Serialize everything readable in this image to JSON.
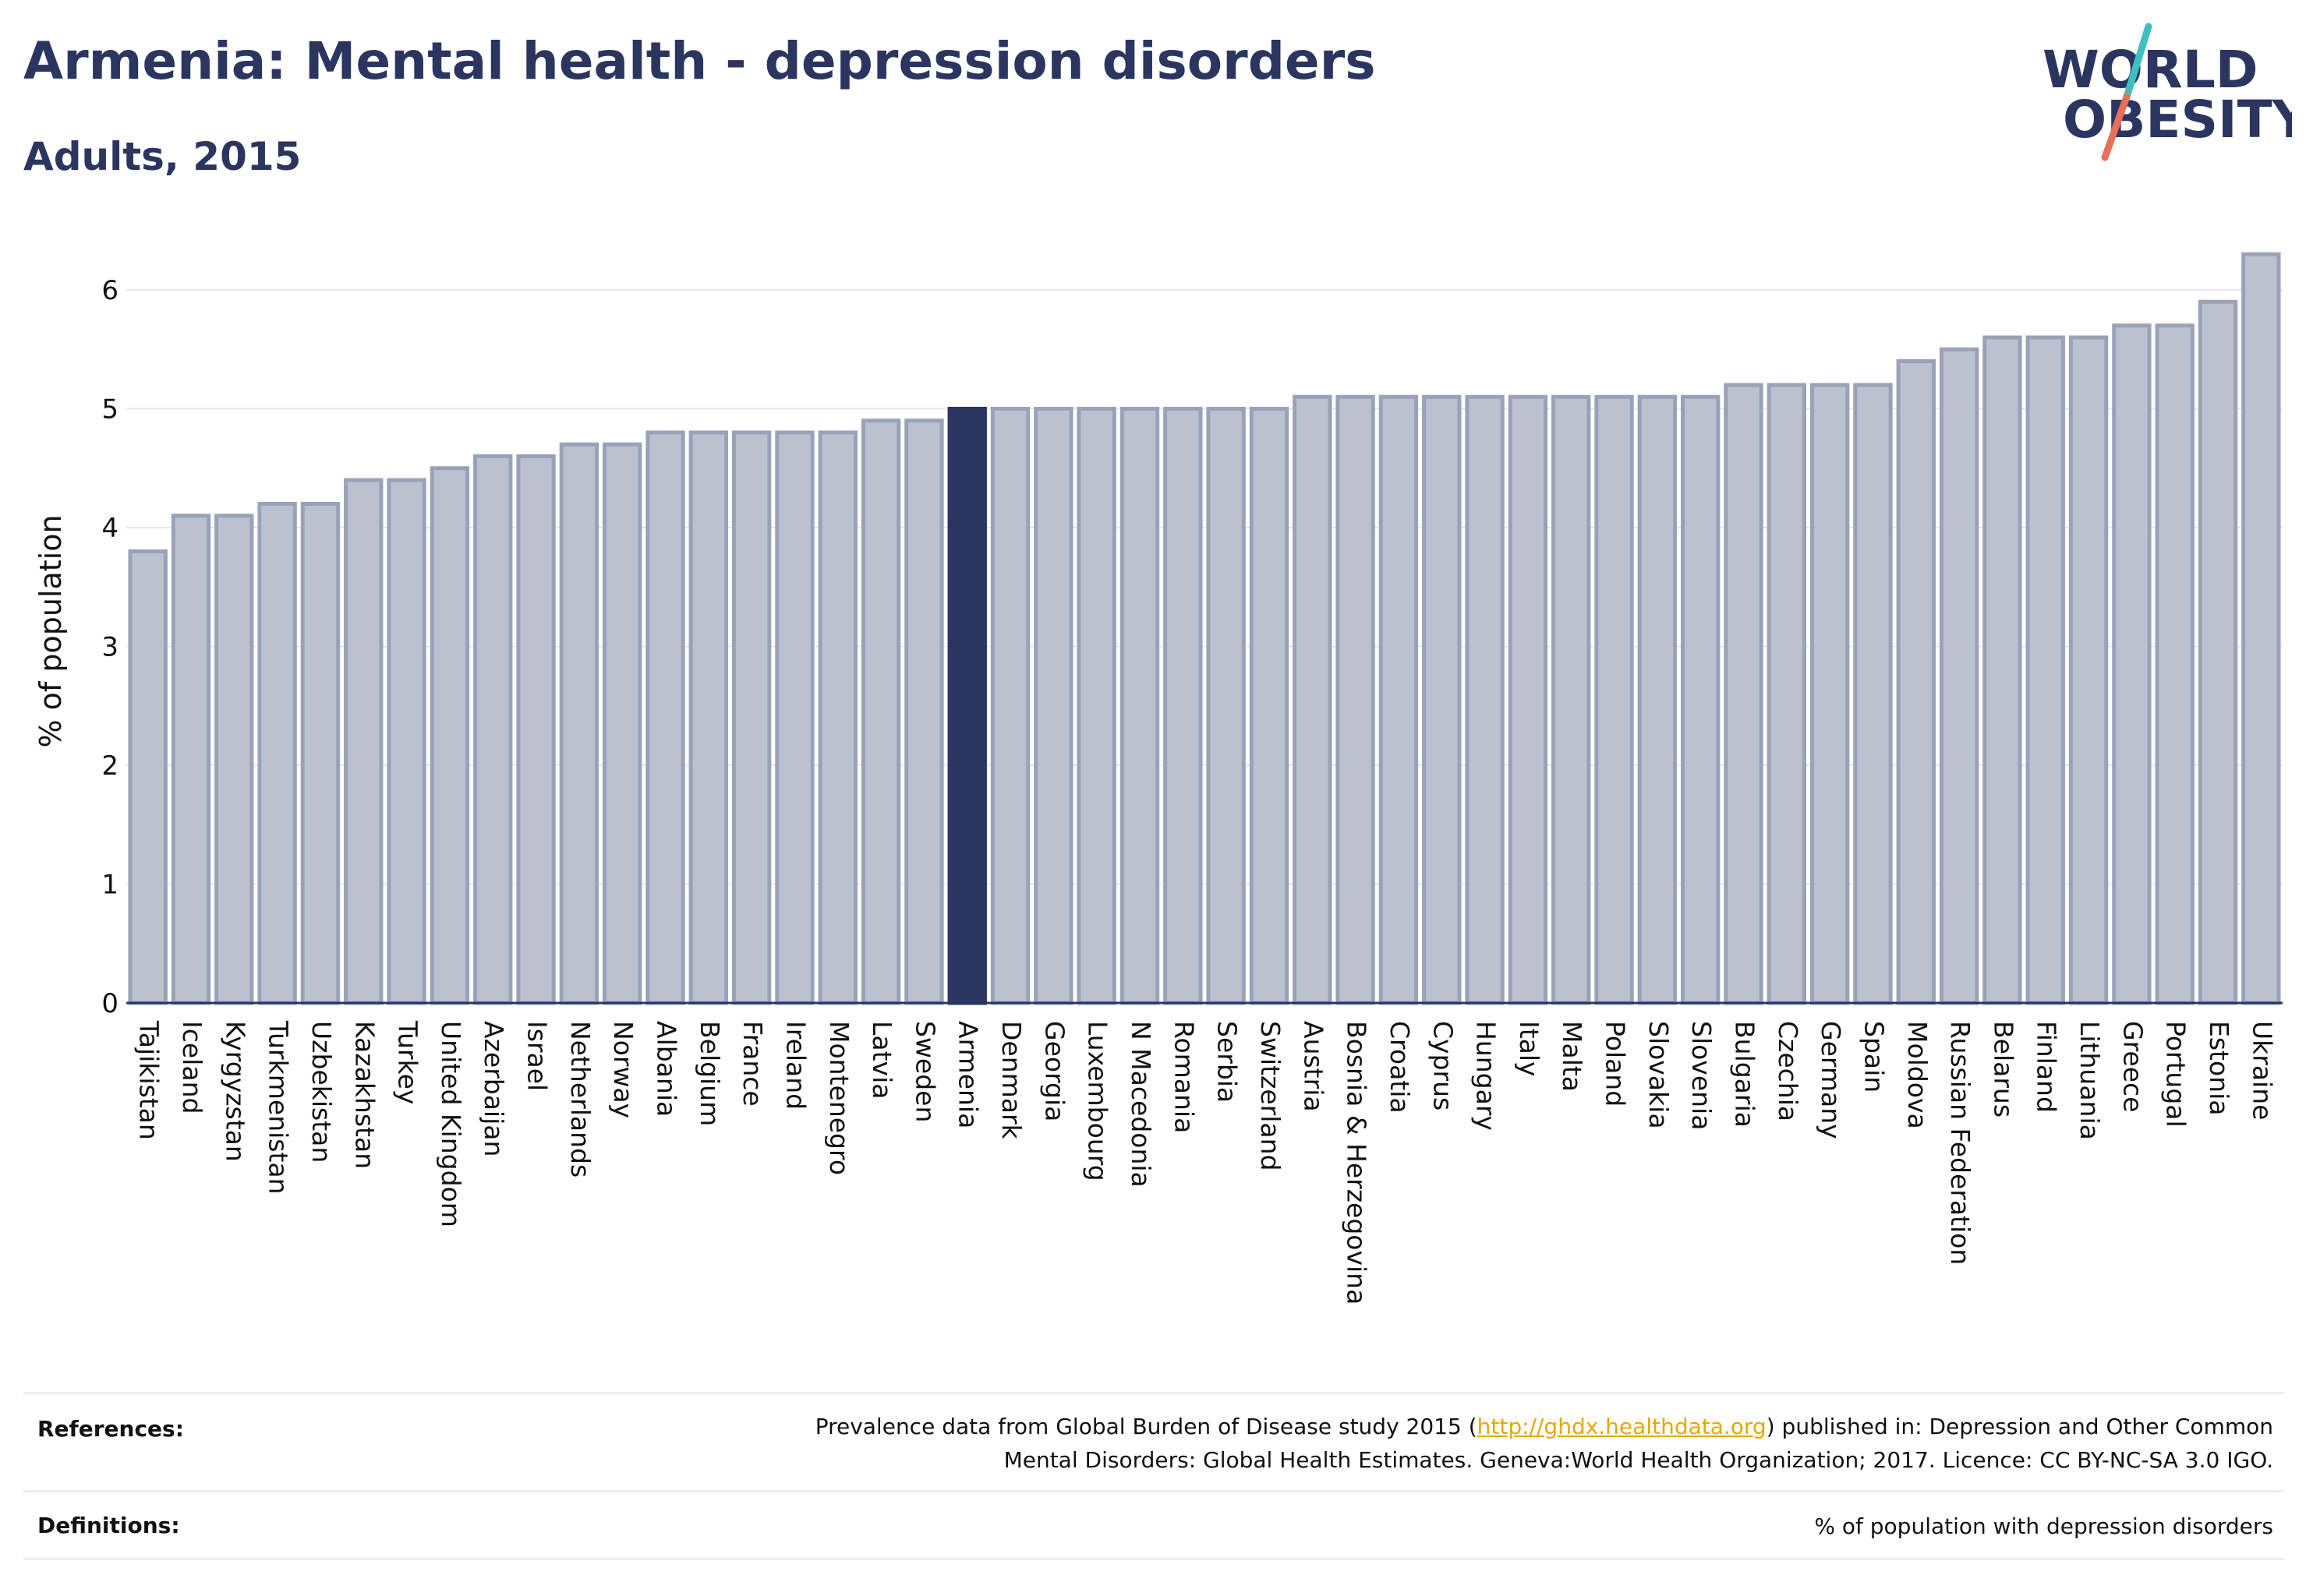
{
  "title": "Armenia: Mental health - depression disorders",
  "subtitle": "Adults, 2015",
  "logo": {
    "line1": "WORLD",
    "line2": "OBESITY"
  },
  "colors": {
    "bar": "#bcc1d0",
    "bar_border": "#9aa2ba",
    "highlight": "#2a3560",
    "title": "#2a3560",
    "link": "#e8a800",
    "slash_teal": "#3fbfbf",
    "slash_coral": "#e8705a"
  },
  "chart_data": {
    "type": "bar",
    "ylabel": "% of population",
    "xlabel": "",
    "ylim": [
      0,
      6.5
    ],
    "yticks": [
      0,
      1,
      2,
      3,
      4,
      5,
      6
    ],
    "grid": true,
    "highlight": "Armenia",
    "categories": [
      "Tajikistan",
      "Iceland",
      "Kyrgyzstan",
      "Turkmenistan",
      "Uzbekistan",
      "Kazakhstan",
      "Turkey",
      "United Kingdom",
      "Azerbaijan",
      "Israel",
      "Netherlands",
      "Norway",
      "Albania",
      "Belgium",
      "France",
      "Ireland",
      "Montenegro",
      "Latvia",
      "Sweden",
      "Armenia",
      "Denmark",
      "Georgia",
      "Luxembourg",
      "N Macedonia",
      "Romania",
      "Serbia",
      "Switzerland",
      "Austria",
      "Bosnia & Herzegovina",
      "Croatia",
      "Cyprus",
      "Hungary",
      "Italy",
      "Malta",
      "Poland",
      "Slovakia",
      "Slovenia",
      "Bulgaria",
      "Czechia",
      "Germany",
      "Spain",
      "Moldova",
      "Russian Federation",
      "Belarus",
      "Finland",
      "Lithuania",
      "Greece",
      "Portugal",
      "Estonia",
      "Ukraine"
    ],
    "values": [
      3.8,
      4.1,
      4.1,
      4.2,
      4.2,
      4.4,
      4.4,
      4.5,
      4.6,
      4.6,
      4.7,
      4.7,
      4.8,
      4.8,
      4.8,
      4.8,
      4.8,
      4.9,
      4.9,
      5.0,
      5.0,
      5.0,
      5.0,
      5.0,
      5.0,
      5.0,
      5.0,
      5.1,
      5.1,
      5.1,
      5.1,
      5.1,
      5.1,
      5.1,
      5.1,
      5.1,
      5.1,
      5.2,
      5.2,
      5.2,
      5.2,
      5.4,
      5.5,
      5.6,
      5.6,
      5.6,
      5.7,
      5.7,
      5.9,
      6.3
    ]
  },
  "references": {
    "label": "References:",
    "text_before": "Prevalence data from Global Burden of Disease study 2015 (",
    "link": "http://ghdx.healthdata.org",
    "text_after": ") published in: Depression and Other Common",
    "line2": "Mental Disorders: Global Health Estimates. Geneva:World Health Organization; 2017. Licence: CC BY-NC-SA 3.0 IGO."
  },
  "definitions": {
    "label": "Definitions:",
    "text": "% of population with depression disorders"
  }
}
